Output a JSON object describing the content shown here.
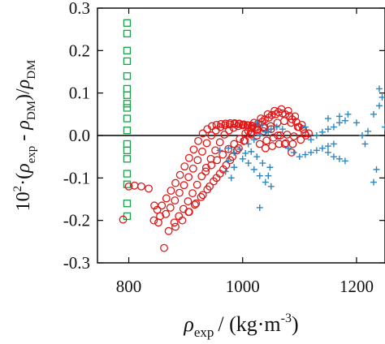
{
  "chart_data": {
    "type": "scatter",
    "xlim": [
      745,
      1250
    ],
    "ylim": [
      -0.3,
      0.3
    ],
    "x_ticks": [
      800,
      1000,
      1200
    ],
    "x_tick_labels": [
      "800",
      "1000",
      "1200"
    ],
    "y_ticks": [
      -0.3,
      -0.2,
      -0.1,
      0,
      0.1,
      0.2,
      0.3
    ],
    "y_tick_labels": [
      "-0.3",
      "-0.2",
      "-0.1",
      "0.0",
      "0.1",
      "0.2",
      "0.3"
    ],
    "zero_line": true,
    "grid": false,
    "xlabel": {
      "symbol": "ρ",
      "subscript": "exp",
      "rest": "/ (kg·m",
      "superscript": "-3",
      "close": ")"
    },
    "ylabel": {
      "prefix": "10",
      "prefix_sup": "2",
      "part1": "·(",
      "rho1": "ρ",
      "sub1": "exp",
      "part2": " - ",
      "rho2": "ρ",
      "sub2": "DM",
      "part3": ")/",
      "rho3": "ρ",
      "sub3": "DM"
    },
    "series": [
      {
        "marker": "square",
        "color": "#1a9e4a",
        "points": [
          [
            797,
            0.265
          ],
          [
            797,
            0.24
          ],
          [
            797,
            0.2
          ],
          [
            797,
            0.175
          ],
          [
            797,
            0.14
          ],
          [
            797,
            0.11
          ],
          [
            797,
            0.095
          ],
          [
            797,
            0.075
          ],
          [
            797,
            0.065
          ],
          [
            797,
            0.04
          ],
          [
            797,
            0.012
          ],
          [
            797,
            -0.02
          ],
          [
            797,
            -0.035
          ],
          [
            797,
            -0.055
          ],
          [
            797,
            -0.09
          ],
          [
            797,
            -0.115
          ],
          [
            797,
            -0.16
          ],
          [
            797,
            -0.19
          ]
        ]
      },
      {
        "marker": "circle",
        "color": "#e01818",
        "points": [
          [
            790,
            -0.198
          ],
          [
            800,
            -0.12
          ],
          [
            810,
            -0.118
          ],
          [
            822,
            -0.12
          ],
          [
            835,
            -0.125
          ],
          [
            845,
            -0.165
          ],
          [
            855,
            -0.19
          ],
          [
            862,
            -0.265
          ],
          [
            844,
            -0.2
          ],
          [
            852,
            -0.205
          ],
          [
            850,
            -0.175
          ],
          [
            858,
            -0.165
          ],
          [
            866,
            -0.148
          ],
          [
            874,
            -0.13
          ],
          [
            882,
            -0.112
          ],
          [
            890,
            -0.093
          ],
          [
            898,
            -0.073
          ],
          [
            906,
            -0.053
          ],
          [
            914,
            -0.033
          ],
          [
            922,
            -0.013
          ],
          [
            930,
            0.005
          ],
          [
            938,
            0.015
          ],
          [
            946,
            0.022
          ],
          [
            954,
            0.025
          ],
          [
            962,
            0.027
          ],
          [
            970,
            0.028
          ],
          [
            978,
            0.029
          ],
          [
            986,
            0.029
          ],
          [
            994,
            0.028
          ],
          [
            1002,
            0.026
          ],
          [
            1010,
            0.024
          ],
          [
            1018,
            0.022
          ],
          [
            865,
            -0.185
          ],
          [
            873,
            -0.17
          ],
          [
            881,
            -0.153
          ],
          [
            889,
            -0.135
          ],
          [
            897,
            -0.117
          ],
          [
            905,
            -0.098
          ],
          [
            913,
            -0.078
          ],
          [
            921,
            -0.058
          ],
          [
            929,
            -0.038
          ],
          [
            937,
            -0.018
          ],
          [
            945,
            0.0
          ],
          [
            953,
            0.012
          ],
          [
            961,
            0.02
          ],
          [
            969,
            0.024
          ],
          [
            977,
            0.026
          ],
          [
            985,
            0.027
          ],
          [
            993,
            0.027
          ],
          [
            1001,
            0.026
          ],
          [
            1009,
            0.024
          ],
          [
            1017,
            0.022
          ],
          [
            1025,
            0.02
          ],
          [
            880,
            -0.205
          ],
          [
            888,
            -0.19
          ],
          [
            896,
            -0.173
          ],
          [
            904,
            -0.155
          ],
          [
            912,
            -0.136
          ],
          [
            920,
            -0.116
          ],
          [
            928,
            -0.096
          ],
          [
            936,
            -0.076
          ],
          [
            944,
            -0.055
          ],
          [
            952,
            -0.035
          ],
          [
            960,
            -0.016
          ],
          [
            968,
            0.002
          ],
          [
            976,
            0.012
          ],
          [
            984,
            0.018
          ],
          [
            992,
            0.022
          ],
          [
            1000,
            0.024
          ],
          [
            1008,
            0.024
          ],
          [
            1016,
            0.023
          ],
          [
            870,
            -0.225
          ],
          [
            882,
            -0.215
          ],
          [
            894,
            -0.2
          ],
          [
            906,
            -0.18
          ],
          [
            918,
            -0.16
          ],
          [
            930,
            -0.14
          ],
          [
            942,
            -0.12
          ],
          [
            954,
            -0.1
          ],
          [
            966,
            -0.08
          ],
          [
            978,
            -0.058
          ],
          [
            990,
            -0.035
          ],
          [
            1002,
            -0.013
          ],
          [
            1014,
            0.005
          ],
          [
            1026,
            0.015
          ],
          [
            1038,
            0.02
          ],
          [
            1050,
            0.015
          ],
          [
            1062,
            0.0
          ],
          [
            1074,
            -0.02
          ],
          [
            1086,
            -0.04
          ],
          [
            905,
            -0.18
          ],
          [
            916,
            -0.163
          ],
          [
            927,
            -0.145
          ],
          [
            938,
            -0.127
          ],
          [
            949,
            -0.108
          ],
          [
            960,
            -0.09
          ],
          [
            971,
            -0.07
          ],
          [
            982,
            -0.05
          ],
          [
            993,
            -0.03
          ],
          [
            1004,
            -0.012
          ],
          [
            1015,
            0.002
          ],
          [
            1026,
            0.012
          ],
          [
            1037,
            0.018
          ],
          [
            935,
            -0.085
          ],
          [
            945,
            -0.07
          ],
          [
            955,
            -0.058
          ],
          [
            965,
            -0.045
          ],
          [
            975,
            -0.032
          ],
          [
            985,
            -0.02
          ],
          [
            995,
            -0.008
          ],
          [
            1005,
            0.005
          ],
          [
            1015,
            0.018
          ],
          [
            1027,
            0.028
          ],
          [
            1039,
            0.038
          ],
          [
            1051,
            0.048
          ],
          [
            1063,
            0.055
          ],
          [
            1075,
            0.05
          ],
          [
            1087,
            0.038
          ],
          [
            1099,
            0.02
          ],
          [
            1111,
            0.0
          ],
          [
            1020,
            0.03
          ],
          [
            1032,
            0.04
          ],
          [
            1044,
            0.05
          ],
          [
            1056,
            0.058
          ],
          [
            1068,
            0.062
          ],
          [
            1080,
            0.058
          ],
          [
            1092,
            0.045
          ],
          [
            1104,
            0.025
          ],
          [
            1116,
            0.005
          ],
          [
            1010,
            0.01
          ],
          [
            1022,
            0.02
          ],
          [
            1034,
            0.032
          ],
          [
            1046,
            0.042
          ],
          [
            1058,
            0.05
          ],
          [
            1070,
            0.052
          ],
          [
            1082,
            0.046
          ],
          [
            1094,
            0.032
          ],
          [
            1106,
            0.015
          ],
          [
            1025,
            0.0
          ],
          [
            1037,
            0.01
          ],
          [
            1049,
            0.022
          ],
          [
            1061,
            0.03
          ],
          [
            1073,
            0.034
          ],
          [
            1085,
            0.03
          ],
          [
            1097,
            0.02
          ],
          [
            1109,
            0.005
          ],
          [
            1030,
            -0.02
          ],
          [
            1042,
            -0.012
          ],
          [
            1054,
            -0.005
          ],
          [
            1066,
            0.0
          ],
          [
            1078,
            0.002
          ],
          [
            1090,
            -0.002
          ],
          [
            1102,
            -0.01
          ],
          [
            1040,
            -0.03
          ],
          [
            1052,
            -0.025
          ],
          [
            1064,
            -0.02
          ],
          [
            1076,
            -0.018
          ],
          [
            1088,
            -0.02
          ]
        ]
      },
      {
        "marker": "plus",
        "color": "#2e86c1",
        "points": [
          [
            960,
            -0.035
          ],
          [
            975,
            -0.03
          ],
          [
            985,
            -0.04
          ],
          [
            995,
            -0.032
          ],
          [
            1005,
            -0.042
          ],
          [
            1015,
            -0.038
          ],
          [
            1025,
            -0.05
          ],
          [
            1035,
            -0.065
          ],
          [
            1045,
            -0.095
          ],
          [
            1050,
            -0.12
          ],
          [
            1048,
            -0.075
          ],
          [
            1000,
            -0.055
          ],
          [
            1010,
            -0.065
          ],
          [
            1020,
            -0.08
          ],
          [
            1030,
            -0.095
          ],
          [
            1040,
            -0.11
          ],
          [
            975,
            -0.06
          ],
          [
            985,
            -0.075
          ],
          [
            980,
            -0.1
          ],
          [
            970,
            -0.085
          ],
          [
            1010,
            -0.02
          ],
          [
            1020,
            -0.01
          ],
          [
            1030,
            0.0
          ],
          [
            1040,
            0.008
          ],
          [
            1050,
            0.015
          ],
          [
            1060,
            0.02
          ],
          [
            1070,
            0.015
          ],
          [
            1025,
            0.03
          ],
          [
            1035,
            0.025
          ],
          [
            1045,
            0.01
          ],
          [
            1030,
            -0.17
          ],
          [
            1080,
            -0.03
          ],
          [
            1090,
            -0.04
          ],
          [
            1100,
            -0.05
          ],
          [
            1110,
            -0.045
          ],
          [
            1120,
            -0.04
          ],
          [
            1130,
            -0.035
          ],
          [
            1140,
            -0.03
          ],
          [
            1150,
            -0.025
          ],
          [
            1160,
            -0.02
          ],
          [
            1120,
            -0.01
          ],
          [
            1130,
            0.0
          ],
          [
            1140,
            0.008
          ],
          [
            1150,
            0.015
          ],
          [
            1160,
            0.02
          ],
          [
            1170,
            0.03
          ],
          [
            1180,
            0.035
          ],
          [
            1150,
            -0.04
          ],
          [
            1160,
            -0.05
          ],
          [
            1170,
            -0.055
          ],
          [
            1180,
            -0.06
          ],
          [
            1110,
            0.02
          ],
          [
            1150,
            0.04
          ],
          [
            1170,
            0.045
          ],
          [
            1185,
            0.05
          ],
          [
            1200,
            0.03
          ],
          [
            1210,
            0.0
          ],
          [
            1215,
            -0.02
          ],
          [
            1220,
            0.01
          ],
          [
            1230,
            0.05
          ],
          [
            1240,
            0.07
          ],
          [
            1245,
            0.09
          ],
          [
            1240,
            0.11
          ],
          [
            1250,
            0.02
          ],
          [
            1235,
            -0.08
          ],
          [
            1230,
            -0.11
          ]
        ]
      }
    ]
  }
}
